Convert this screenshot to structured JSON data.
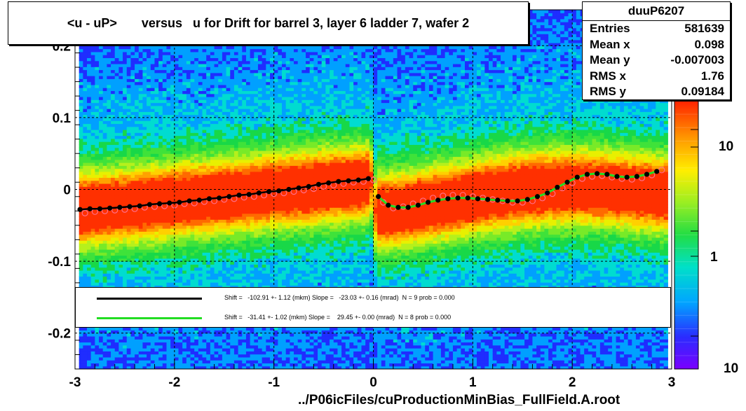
{
  "title": "<u - uP>       versus   u for Drift for barrel 3, layer 6 ladder 7, wafer 2",
  "stats": {
    "name": "duuP6207",
    "rows": [
      {
        "label": "Entries",
        "value": "581639"
      },
      {
        "label": "Mean x",
        "value": "0.098"
      },
      {
        "label": "Mean y",
        "value": "-0.007003"
      },
      {
        "label": "RMS x",
        "value": "1.76"
      },
      {
        "label": "RMS y",
        "value": "0.09184"
      }
    ]
  },
  "fits": [
    {
      "text": "Shift =   -102.91 +- 1.12 (mkm) Slope =   -23.03 +- 0.16 (mrad)  N = 9 prob = 0.000",
      "color": "#000000"
    },
    {
      "text": "Shift =   -31.41 +- 1.02 (mkm) Slope =    29.45 +- 0.00 (mrad)  N = 8 prob = 0.000",
      "color": "#22dd22"
    }
  ],
  "xlabel": "../P06icFiles/cuProductionMinBias_FullField.A.root",
  "chart_data": {
    "type": "heatmap",
    "title": "<u - uP>       versus   u for Drift for barrel 3, layer 6 ladder 7, wafer 2",
    "xlabel": "../P06icFiles/cuProductionMinBias_FullField.A.root",
    "ylabel": "",
    "xlim": [
      -3,
      3
    ],
    "ylim": [
      -0.25,
      0.25
    ],
    "x_ticks": [
      "-3",
      "-2",
      "-1",
      "0",
      "1",
      "2",
      "3"
    ],
    "y_ticks": [
      "-0.2",
      "-0.1",
      "0",
      "0.1",
      "0.2"
    ],
    "z_scale": "log",
    "z_ticks": [
      "1",
      "10",
      "10"
    ],
    "grid": true,
    "profile_points": {
      "x": [
        -2.95,
        -2.85,
        -2.75,
        -2.65,
        -2.55,
        -2.45,
        -2.35,
        -2.25,
        -2.15,
        -2.05,
        -1.95,
        -1.85,
        -1.75,
        -1.65,
        -1.55,
        -1.45,
        -1.35,
        -1.25,
        -1.15,
        -1.05,
        -0.95,
        -0.85,
        -0.75,
        -0.65,
        -0.55,
        -0.45,
        -0.35,
        -0.25,
        -0.15,
        -0.05,
        0.05,
        0.15,
        0.25,
        0.35,
        0.45,
        0.55,
        0.65,
        0.75,
        0.85,
        0.95,
        1.05,
        1.15,
        1.25,
        1.35,
        1.45,
        1.55,
        1.65,
        1.75,
        1.85,
        1.95,
        2.05,
        2.15,
        2.25,
        2.35,
        2.45,
        2.55,
        2.65,
        2.75,
        2.85
      ],
      "y": [
        -0.028,
        -0.027,
        -0.027,
        -0.026,
        -0.025,
        -0.024,
        -0.023,
        -0.021,
        -0.02,
        -0.019,
        -0.018,
        -0.016,
        -0.015,
        -0.013,
        -0.012,
        -0.01,
        -0.008,
        -0.007,
        -0.005,
        -0.003,
        -0.002,
        0.0,
        0.002,
        0.004,
        0.007,
        0.009,
        0.011,
        0.012,
        0.013,
        0.015,
        -0.01,
        -0.022,
        -0.025,
        -0.025,
        -0.022,
        -0.018,
        -0.015,
        -0.013,
        -0.012,
        -0.012,
        -0.013,
        -0.014,
        -0.015,
        -0.016,
        -0.016,
        -0.014,
        -0.01,
        -0.005,
        0.003,
        0.01,
        0.017,
        0.021,
        0.022,
        0.021,
        0.018,
        0.017,
        0.018,
        0.021,
        0.025
      ]
    },
    "open_points": {
      "x": [
        -2.9,
        -2.8,
        -2.7,
        -2.6,
        -2.5,
        -2.4,
        -2.3,
        -2.2,
        -2.1,
        -2.0,
        -1.9,
        -1.8,
        -1.7,
        -1.6,
        -1.5,
        -1.4,
        -1.3,
        -1.2,
        -1.1,
        -1.0,
        -0.9,
        -0.8,
        -0.7,
        -0.6,
        -0.5,
        -0.4,
        -0.3,
        -0.2,
        -0.1,
        0.0,
        0.1,
        0.2,
        0.3,
        0.4,
        0.5,
        0.6,
        0.7,
        0.8,
        0.9,
        1.0,
        1.1,
        1.2,
        1.3,
        1.4,
        1.5,
        1.6,
        1.7,
        1.8,
        1.9,
        2.0,
        2.1,
        2.2,
        2.3,
        2.4,
        2.5,
        2.6,
        2.7,
        2.8,
        2.9
      ],
      "y": [
        -0.033,
        -0.031,
        -0.03,
        -0.029,
        -0.028,
        -0.027,
        -0.025,
        -0.024,
        -0.023,
        -0.022,
        -0.02,
        -0.019,
        -0.017,
        -0.016,
        -0.014,
        -0.013,
        -0.011,
        -0.01,
        -0.008,
        -0.006,
        -0.005,
        -0.003,
        -0.001,
        0.001,
        0.004,
        0.006,
        0.008,
        0.01,
        0.011,
        0.013,
        -0.018,
        -0.026,
        -0.024,
        -0.02,
        -0.016,
        -0.012,
        -0.009,
        -0.008,
        -0.008,
        -0.01,
        -0.012,
        -0.014,
        -0.016,
        -0.018,
        -0.018,
        -0.016,
        -0.012,
        -0.006,
        0.002,
        0.009,
        0.015,
        0.018,
        0.019,
        0.017,
        0.015,
        0.014,
        0.016,
        0.02,
        0.027
      ]
    },
    "fit_curves": [
      {
        "color": "#000000",
        "x_range": [
          -3,
          0
        ],
        "shift_mkm": -102.91,
        "slope_mrad": -23.03
      },
      {
        "color": "#22dd22",
        "x_range": [
          0,
          3
        ],
        "shift_mkm": -31.41,
        "slope_mrad": 29.45
      }
    ]
  }
}
